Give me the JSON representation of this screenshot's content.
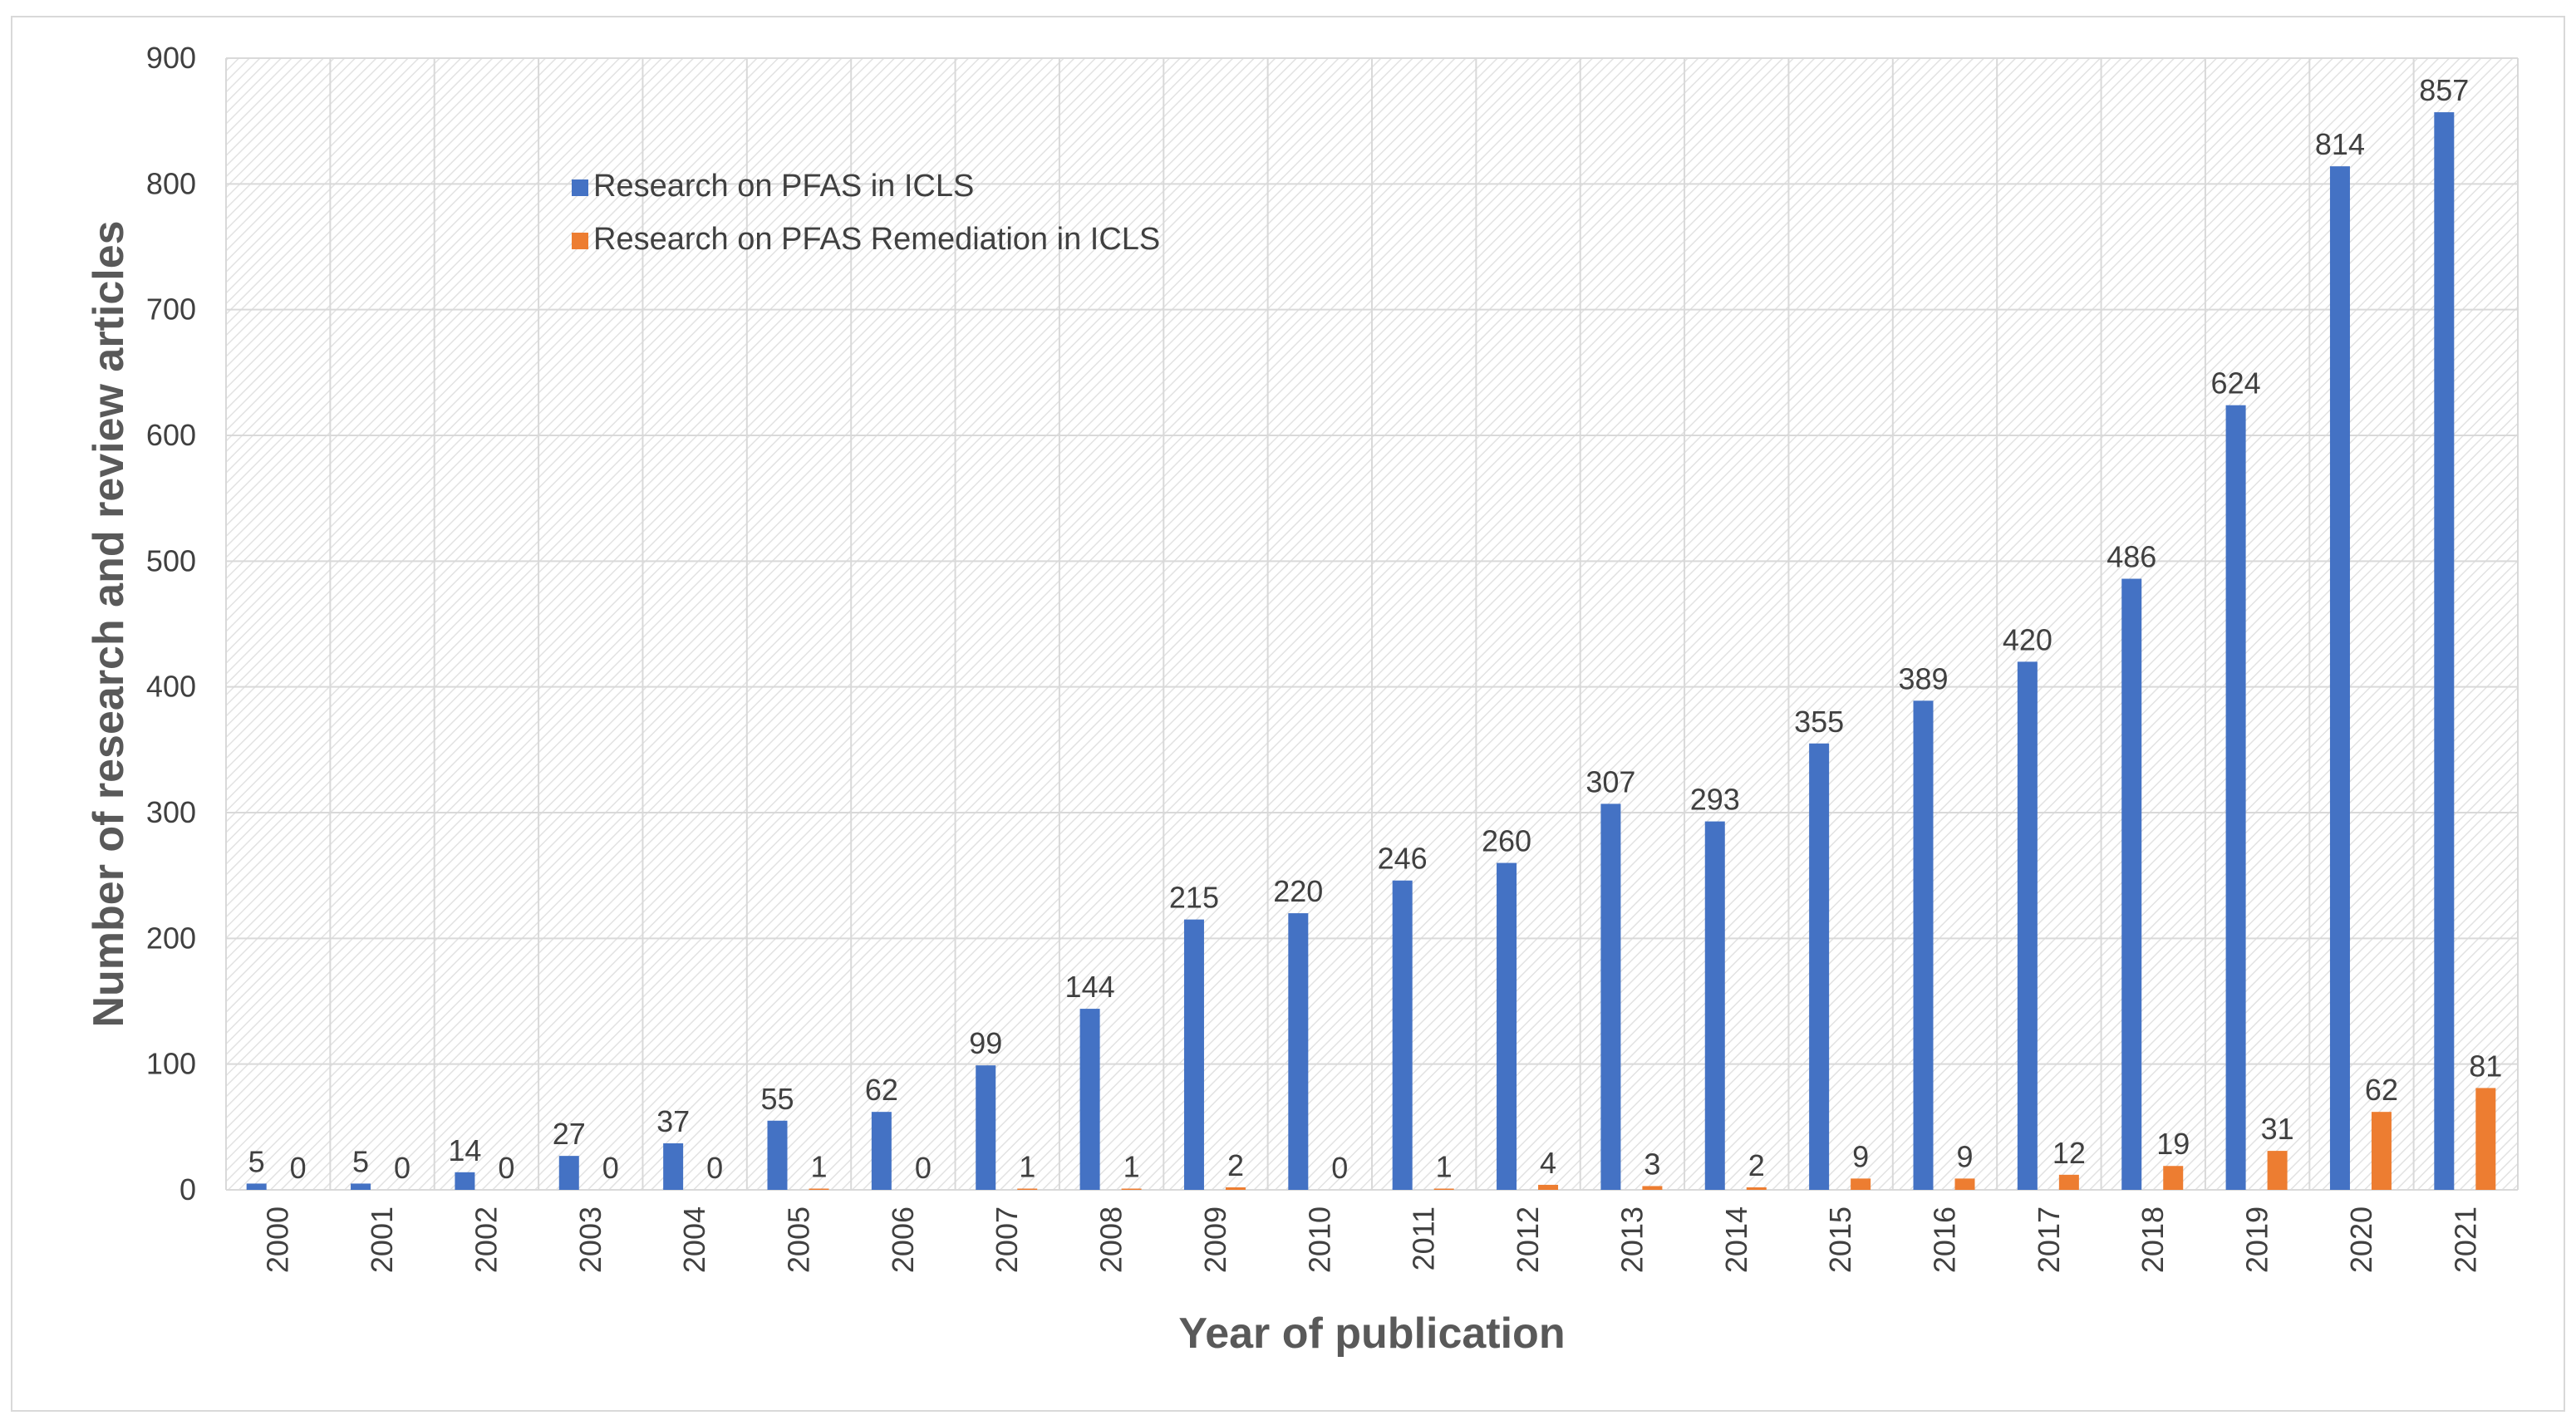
{
  "chart_data": {
    "type": "bar",
    "xlabel": "Year of publication",
    "ylabel": "Number of research and review articles",
    "ylim": [
      0,
      900
    ],
    "yticks": [
      0,
      100,
      200,
      300,
      400,
      500,
      600,
      700,
      800,
      900
    ],
    "grid": true,
    "legend_position": "top-left",
    "categories": [
      "2000",
      "2001",
      "2002",
      "2003",
      "2004",
      "2005",
      "2006",
      "2007",
      "2008",
      "2009",
      "2010",
      "2011",
      "2012",
      "2013",
      "2014",
      "2015",
      "2016",
      "2017",
      "2018",
      "2019",
      "2020",
      "2021"
    ],
    "series": [
      {
        "name": "Research on PFAS in ICLS",
        "color": "#4472C4",
        "values": [
          5,
          5,
          14,
          27,
          37,
          55,
          62,
          99,
          144,
          215,
          220,
          246,
          260,
          307,
          293,
          355,
          389,
          420,
          486,
          624,
          814,
          857
        ]
      },
      {
        "name": "Research on PFAS Remediation  in ICLS",
        "color": "#ED7D31",
        "values": [
          0,
          0,
          0,
          0,
          0,
          1,
          0,
          1,
          1,
          2,
          0,
          1,
          4,
          3,
          2,
          9,
          9,
          12,
          19,
          31,
          62,
          81
        ]
      }
    ]
  }
}
